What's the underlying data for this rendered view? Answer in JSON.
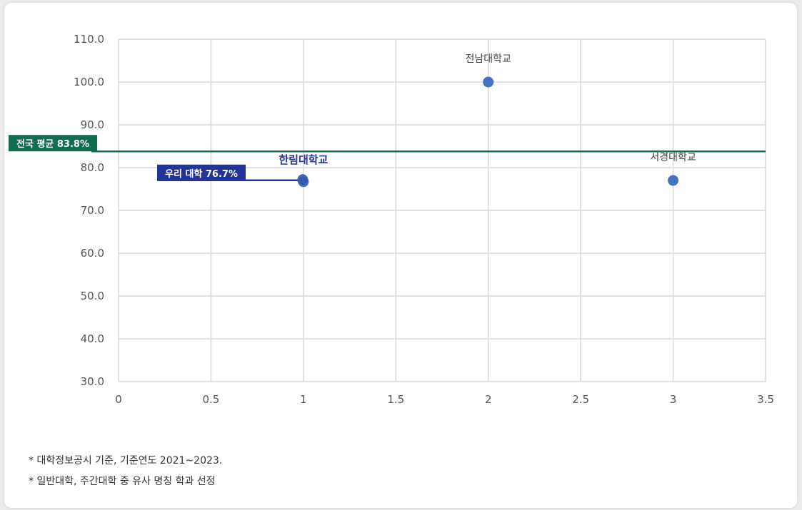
{
  "chart_data": {
    "type": "scatter",
    "xlim": [
      0,
      3.5
    ],
    "ylim": [
      30,
      110
    ],
    "x_ticks": [
      "0",
      "0.5",
      "1",
      "1.5",
      "2",
      "2.5",
      "3",
      "3.5"
    ],
    "y_ticks": [
      "30.0",
      "40.0",
      "50.0",
      "60.0",
      "70.0",
      "80.0",
      "90.0",
      "100.0",
      "110.0"
    ],
    "grid": true,
    "points": [
      {
        "label": "한림대학교",
        "x": 1,
        "y": 76.7,
        "highlight": true
      },
      {
        "label": "전남대학교",
        "x": 2,
        "y": 100.0,
        "highlight": false
      },
      {
        "label": "서경대학교",
        "x": 3,
        "y": 77.0,
        "highlight": false
      }
    ],
    "reference_lines": [
      {
        "name": "national-average",
        "label": "전국 평균 83.8%",
        "y": 83.8,
        "color": "#0f6e52"
      },
      {
        "name": "our-university",
        "label": "우리 대학 76.7%",
        "y": 76.7,
        "color": "#22339a"
      }
    ],
    "colors": {
      "point": "#4472c4",
      "highlight_point": "#2f5aa8",
      "highlight_text": "#22339a",
      "grid": "#d9d9d9"
    }
  },
  "footnotes": [
    "* 대학정보공시 기준, 기준연도 2021~2023.",
    "* 일반대학, 주간대학 중 유사 명칭 학과 선정"
  ]
}
